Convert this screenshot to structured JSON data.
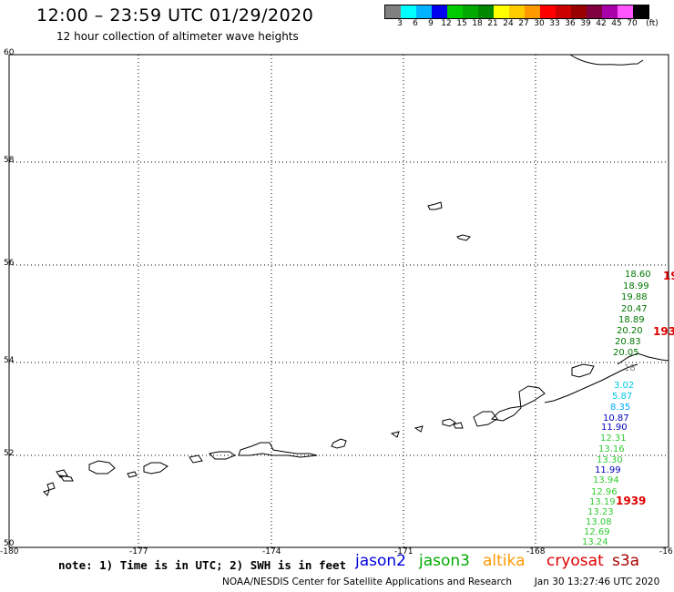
{
  "header": {
    "title": "12:00 – 23:59 UTC 01/29/2020",
    "subtitle": "12 hour collection of altimeter wave heights"
  },
  "colorbar": {
    "colors": [
      "#808080",
      "#00ffff",
      "#00b2ff",
      "#0000ee",
      "#00cc00",
      "#00aa00",
      "#008800",
      "#ffff00",
      "#ffcc00",
      "#ff9900",
      "#ff0000",
      "#cc0000",
      "#990000",
      "#800040",
      "#aa00aa",
      "#ff55ff",
      "#000000"
    ],
    "labels": [
      "3",
      "6",
      "9",
      "12",
      "15",
      "18",
      "21",
      "24",
      "27",
      "30",
      "33",
      "36",
      "39",
      "42",
      "45",
      "70",
      "(ft)"
    ]
  },
  "map": {
    "lat_labels": [
      "60",
      "58",
      "56",
      "54",
      "52",
      "50"
    ],
    "lon_labels": [
      "-180",
      "-177",
      "-174",
      "-171",
      "-168",
      "-16"
    ],
    "measurements": [
      {
        "v": "18.60",
        "c": "#007700"
      },
      {
        "v": "18.99",
        "c": "#007700"
      },
      {
        "v": "19.88",
        "c": "#007700"
      },
      {
        "v": "20.47",
        "c": "#007700"
      },
      {
        "v": "18.89",
        "c": "#007700"
      },
      {
        "v": "20.20",
        "c": "#007700"
      },
      {
        "v": "20.83",
        "c": "#007700"
      },
      {
        "v": "20.05",
        "c": "#007700"
      },
      {
        "v": "18",
        "c": "#888888"
      },
      {
        "v": "3.02",
        "c": "#00c8e6"
      },
      {
        "v": "5.87",
        "c": "#00c8e6"
      },
      {
        "v": "8.35",
        "c": "#00a8ff"
      },
      {
        "v": "10.87",
        "c": "#0000bb"
      },
      {
        "v": "11.90",
        "c": "#0000bb"
      },
      {
        "v": "12.31",
        "c": "#33cc33"
      },
      {
        "v": "13.16",
        "c": "#33cc33"
      },
      {
        "v": "13.30",
        "c": "#33cc33"
      },
      {
        "v": "11.99",
        "c": "#0000bb"
      },
      {
        "v": "13.94",
        "c": "#33cc33"
      },
      {
        "v": "12.96",
        "c": "#33cc33"
      },
      {
        "v": "13.19",
        "c": "#33cc33"
      },
      {
        "v": "13.23",
        "c": "#33cc33"
      },
      {
        "v": "13.08",
        "c": "#33cc33"
      },
      {
        "v": "12.69",
        "c": "#33cc33"
      },
      {
        "v": "13.24",
        "c": "#33cc33"
      }
    ],
    "track_ids": [
      "19",
      "193",
      "1939"
    ]
  },
  "legend": {
    "note": "note: 1) Time is in UTC; 2) SWH is in feet",
    "satellites": [
      {
        "name": "jason2",
        "color": "#0000dd"
      },
      {
        "name": "jason3",
        "color": "#00aa00"
      },
      {
        "name": "altika",
        "color": "#ff9900"
      },
      {
        "name": "cryosat",
        "color": "#dd0000"
      },
      {
        "name": "s3a",
        "color": "#aa0000"
      }
    ]
  },
  "footer": {
    "credit": "NOAA/NESDIS Center for Satellite Applications and Research",
    "timestamp": "Jan 30 13:27:46 UTC 2020"
  }
}
